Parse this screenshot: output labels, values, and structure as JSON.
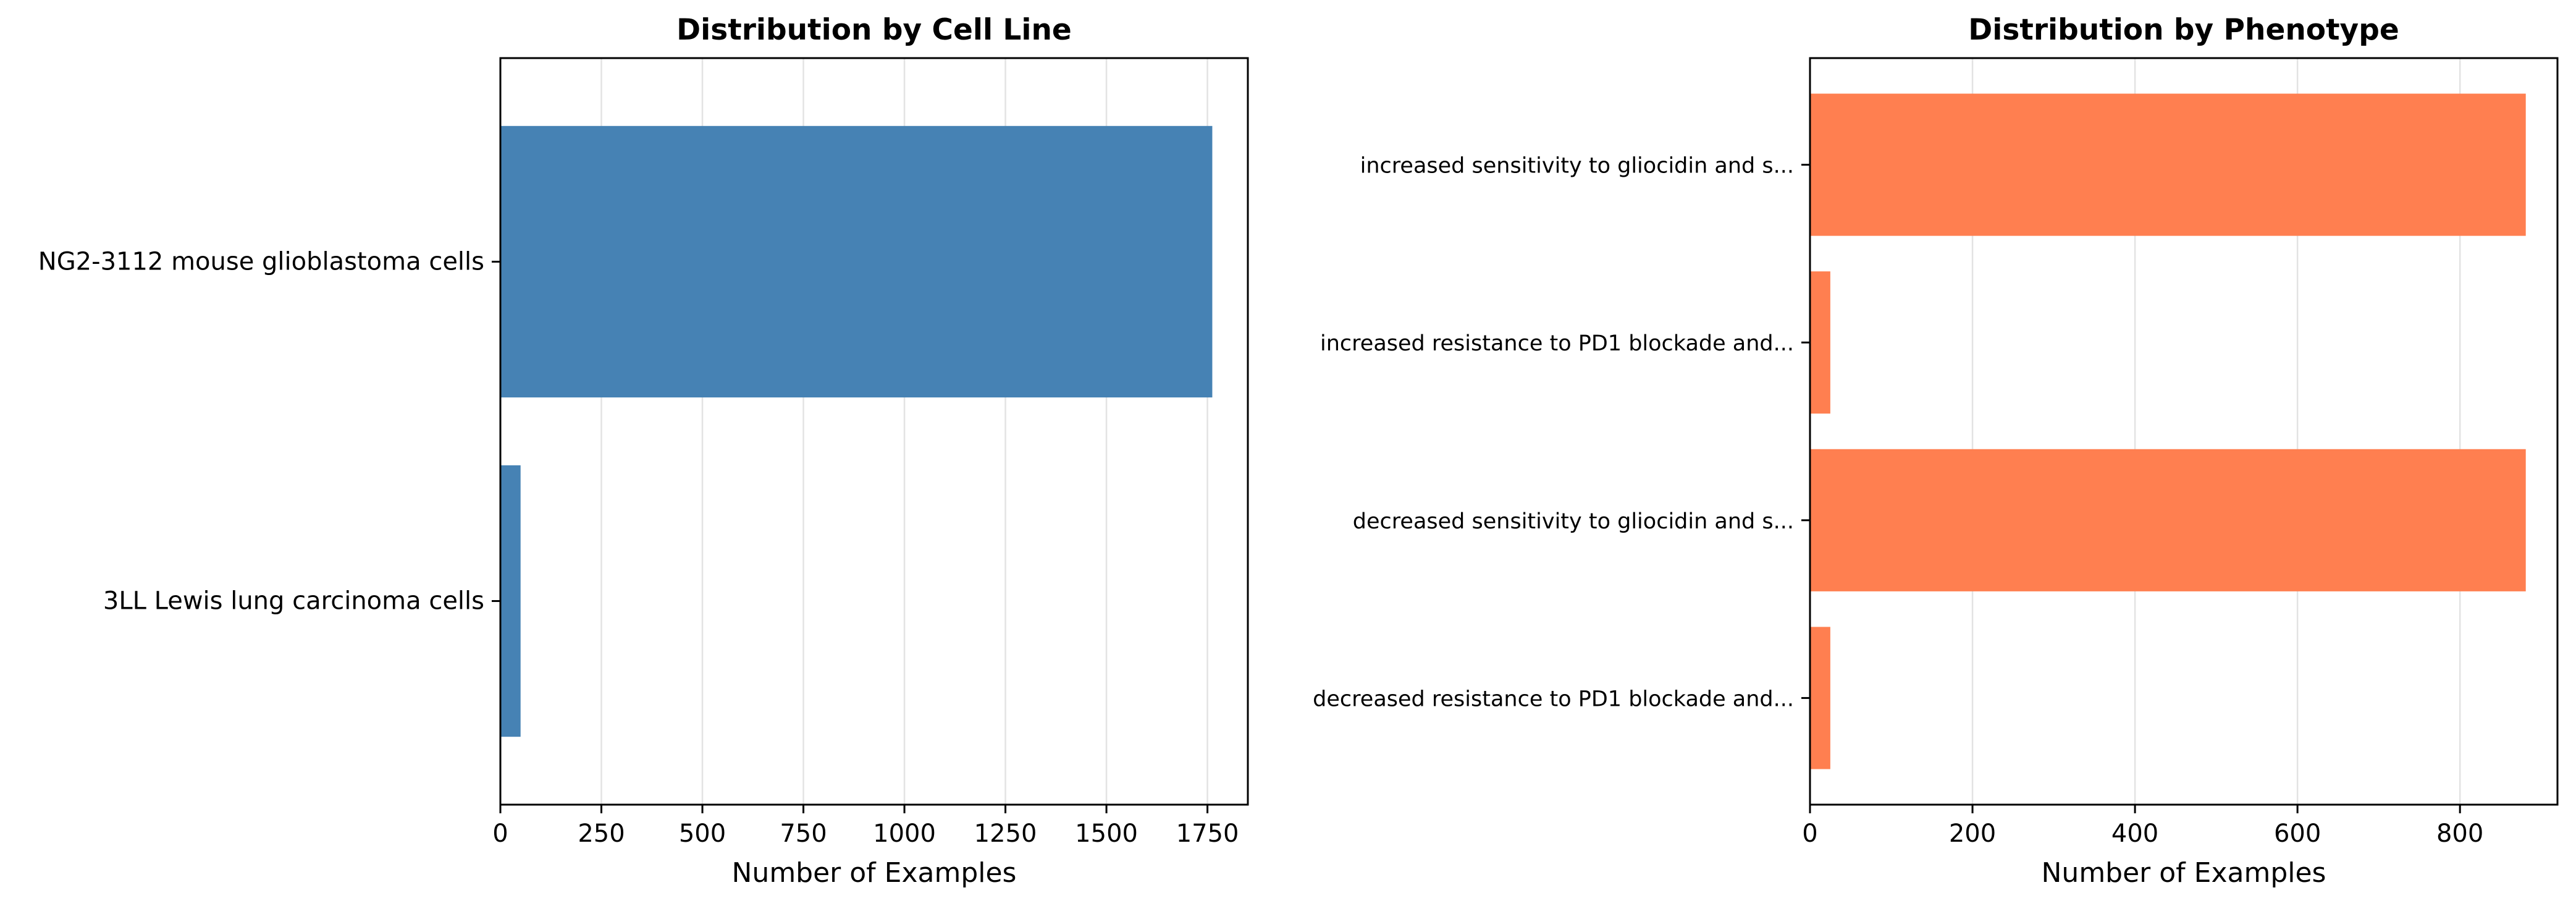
{
  "chart_data": [
    {
      "type": "bar",
      "orientation": "horizontal",
      "title": "Distribution by Cell Line",
      "xlabel": "Number of Examples",
      "ylabel": "",
      "categories": [
        "NG2-3112 mouse glioblastoma cells",
        "3LL Lewis lung carcinoma cells"
      ],
      "values": [
        1762,
        50
      ],
      "xlim": [
        0,
        1850
      ],
      "xticks": [
        0,
        250,
        500,
        750,
        1000,
        1250,
        1500,
        1750
      ],
      "xtick_labels": [
        "0",
        "250",
        "500",
        "750",
        "1000",
        "1250",
        "1500",
        "1750"
      ],
      "bar_color": "#4682b4",
      "grid": "x"
    },
    {
      "type": "bar",
      "orientation": "horizontal",
      "title": "Distribution by Phenotype",
      "xlabel": "Number of Examples",
      "ylabel": "",
      "categories": [
        "increased sensitivity to gliocidin and s...",
        "increased resistance to PD1 blockade and...",
        "decreased sensitivity to gliocidin and s...",
        "decreased resistance to PD1 blockade and..."
      ],
      "values": [
        881,
        25,
        881,
        25
      ],
      "xlim": [
        0,
        920
      ],
      "xticks": [
        0,
        200,
        400,
        600,
        800
      ],
      "xtick_labels": [
        "0",
        "200",
        "400",
        "600",
        "800"
      ],
      "bar_color": "#ff7f50",
      "grid": "x"
    }
  ]
}
